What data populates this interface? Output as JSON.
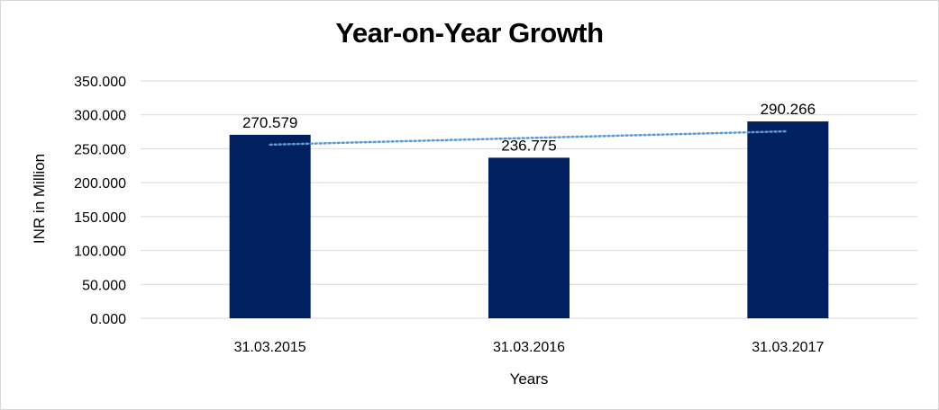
{
  "chart_data": {
    "type": "bar",
    "title": "Year-on-Year Growth",
    "xlabel": "Years",
    "ylabel": "INR in Million",
    "categories": [
      "31.03.2015",
      "31.03.2016",
      "31.03.2017"
    ],
    "series": [
      {
        "values": [
          270.579,
          236.775,
          290.266
        ]
      }
    ],
    "data_labels": [
      "270.579",
      "236.775",
      "290.266"
    ],
    "y_ticks": [
      0,
      50,
      100,
      150,
      200,
      250,
      300,
      350
    ],
    "y_tick_labels": [
      "0.000",
      "50.000",
      "100.000",
      "150.000",
      "200.000",
      "250.000",
      "300.000",
      "350.000"
    ],
    "ylim": [
      0,
      350
    ],
    "grid": true,
    "trendline": {
      "type": "linear",
      "style": "dotted"
    },
    "colors": {
      "bar": "#002060",
      "trendline": "#5b9bd5",
      "grid": "#d9d9d9"
    }
  }
}
